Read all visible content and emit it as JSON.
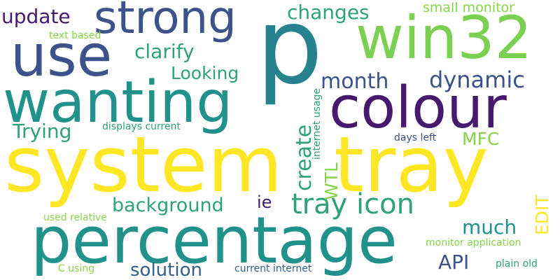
{
  "palette": {
    "dark_purple": "#46196e",
    "indigo": "#3b528b",
    "blue_gray": "#355f8d",
    "teal": "#26828e",
    "sea_green": "#21918c",
    "green": "#2ea37a",
    "lime": "#7ad151",
    "light_green": "#86d549",
    "yellow": "#fde725"
  },
  "words": {
    "system": "system",
    "tray": "tray",
    "percentage": "percentage",
    "p": "p",
    "wanting": "wanting",
    "colour": "colour",
    "win32": "win32",
    "use": "use",
    "strong": "strong",
    "tray_icon": "tray icon",
    "update": "update",
    "changes": "changes",
    "small_monitor": "small monitor",
    "clarify": "clarify",
    "text_based": "text based",
    "looking": "Looking",
    "month": "month",
    "dynamic": "dynamic",
    "trying": "Trying",
    "displays_current": "displays current",
    "create": "create",
    "mfc": "MFC",
    "internet_usage": "internet usage",
    "days_left": "days left",
    "wtl": "WTL",
    "background": "background",
    "ie": "ie",
    "edit": "EDIT",
    "used_relative": "used relative",
    "much": "much",
    "monitor_application": "monitor application",
    "api": "API",
    "c_using": "C using",
    "solution": "solution",
    "current_internet": "current internet",
    "plain_old": "plain old"
  }
}
